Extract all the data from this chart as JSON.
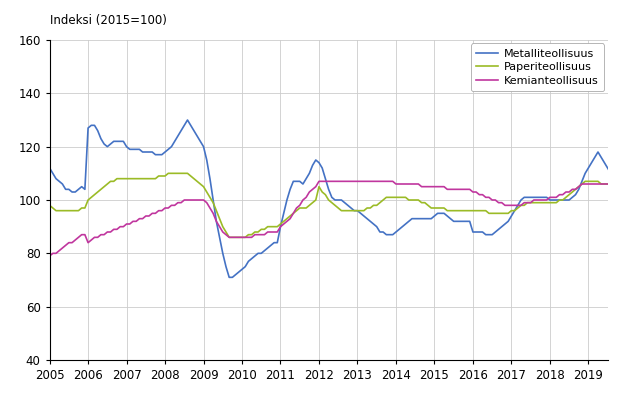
{
  "ylabel": "Indeksi (2015=100)",
  "ylim": [
    40,
    160
  ],
  "yticks": [
    40,
    60,
    80,
    100,
    120,
    140,
    160
  ],
  "xlim_start": 2005.0,
  "xlim_end": 2019.5,
  "xtick_years": [
    2005,
    2006,
    2007,
    2008,
    2009,
    2010,
    2011,
    2012,
    2013,
    2014,
    2015,
    2016,
    2017,
    2018,
    2019
  ],
  "line_colors": [
    "#4472c4",
    "#9BBB26",
    "#c0369e"
  ],
  "line_labels": [
    "Metalliteollisuus",
    "Paperiteollisuus",
    "Kemianteollisuus"
  ],
  "line_width": 1.2,
  "background_color": "#ffffff",
  "grid_color": "#cccccc",
  "metalliteollisuus": [
    112,
    110,
    108,
    107,
    106,
    104,
    104,
    103,
    103,
    104,
    105,
    104,
    127,
    128,
    128,
    126,
    123,
    121,
    120,
    121,
    122,
    122,
    122,
    122,
    120,
    119,
    119,
    119,
    119,
    118,
    118,
    118,
    118,
    117,
    117,
    117,
    118,
    119,
    120,
    122,
    124,
    126,
    128,
    130,
    128,
    126,
    124,
    122,
    120,
    115,
    108,
    100,
    92,
    86,
    80,
    75,
    71,
    71,
    72,
    73,
    74,
    75,
    77,
    78,
    79,
    80,
    80,
    81,
    82,
    83,
    84,
    84,
    90,
    95,
    100,
    104,
    107,
    107,
    107,
    106,
    108,
    110,
    113,
    115,
    114,
    112,
    108,
    104,
    101,
    100,
    100,
    100,
    99,
    98,
    97,
    96,
    96,
    95,
    94,
    93,
    92,
    91,
    90,
    88,
    88,
    87,
    87,
    87,
    88,
    89,
    90,
    91,
    92,
    93,
    93,
    93,
    93,
    93,
    93,
    93,
    94,
    95,
    95,
    95,
    94,
    93,
    92,
    92,
    92,
    92,
    92,
    92,
    88,
    88,
    88,
    88,
    87,
    87,
    87,
    88,
    89,
    90,
    91,
    92,
    94,
    96,
    98,
    100,
    101,
    101,
    101,
    101,
    101,
    101,
    101,
    101,
    100,
    100,
    100,
    100,
    100,
    100,
    100,
    101,
    102,
    104,
    107,
    110,
    112,
    114,
    116,
    118,
    116,
    114,
    112,
    110,
    110
  ],
  "paperiteollisuus": [
    98,
    97,
    96,
    96,
    96,
    96,
    96,
    96,
    96,
    96,
    97,
    97,
    100,
    101,
    102,
    103,
    104,
    105,
    106,
    107,
    107,
    108,
    108,
    108,
    108,
    108,
    108,
    108,
    108,
    108,
    108,
    108,
    108,
    108,
    109,
    109,
    109,
    110,
    110,
    110,
    110,
    110,
    110,
    110,
    109,
    108,
    107,
    106,
    105,
    103,
    101,
    99,
    96,
    93,
    90,
    88,
    86,
    86,
    86,
    86,
    86,
    86,
    87,
    87,
    88,
    88,
    89,
    89,
    90,
    90,
    90,
    90,
    91,
    92,
    93,
    94,
    95,
    96,
    97,
    97,
    97,
    98,
    99,
    100,
    105,
    103,
    102,
    100,
    99,
    98,
    97,
    96,
    96,
    96,
    96,
    96,
    96,
    96,
    96,
    97,
    97,
    98,
    98,
    99,
    100,
    101,
    101,
    101,
    101,
    101,
    101,
    101,
    100,
    100,
    100,
    100,
    99,
    99,
    98,
    97,
    97,
    97,
    97,
    97,
    96,
    96,
    96,
    96,
    96,
    96,
    96,
    96,
    96,
    96,
    96,
    96,
    96,
    95,
    95,
    95,
    95,
    95,
    95,
    95,
    96,
    96,
    97,
    98,
    98,
    99,
    99,
    99,
    99,
    99,
    99,
    99,
    99,
    99,
    99,
    100,
    100,
    101,
    102,
    103,
    104,
    105,
    106,
    107,
    107,
    107,
    107,
    107,
    106,
    106,
    106,
    106,
    106
  ],
  "kemianteollisuus": [
    79,
    80,
    80,
    81,
    82,
    83,
    84,
    84,
    85,
    86,
    87,
    87,
    84,
    85,
    86,
    86,
    87,
    87,
    88,
    88,
    89,
    89,
    90,
    90,
    91,
    91,
    92,
    92,
    93,
    93,
    94,
    94,
    95,
    95,
    96,
    96,
    97,
    97,
    98,
    98,
    99,
    99,
    100,
    100,
    100,
    100,
    100,
    100,
    100,
    99,
    97,
    95,
    92,
    90,
    88,
    87,
    86,
    86,
    86,
    86,
    86,
    86,
    86,
    86,
    87,
    87,
    87,
    87,
    88,
    88,
    88,
    88,
    90,
    91,
    92,
    93,
    95,
    97,
    98,
    100,
    101,
    103,
    104,
    105,
    107,
    107,
    107,
    107,
    107,
    107,
    107,
    107,
    107,
    107,
    107,
    107,
    107,
    107,
    107,
    107,
    107,
    107,
    107,
    107,
    107,
    107,
    107,
    107,
    106,
    106,
    106,
    106,
    106,
    106,
    106,
    106,
    105,
    105,
    105,
    105,
    105,
    105,
    105,
    105,
    104,
    104,
    104,
    104,
    104,
    104,
    104,
    104,
    103,
    103,
    102,
    102,
    101,
    101,
    100,
    100,
    99,
    99,
    98,
    98,
    98,
    98,
    98,
    98,
    99,
    99,
    99,
    100,
    100,
    100,
    100,
    100,
    101,
    101,
    101,
    102,
    102,
    103,
    103,
    104,
    104,
    105,
    106,
    106,
    106,
    106,
    106,
    106,
    106,
    106,
    106,
    106,
    106
  ]
}
